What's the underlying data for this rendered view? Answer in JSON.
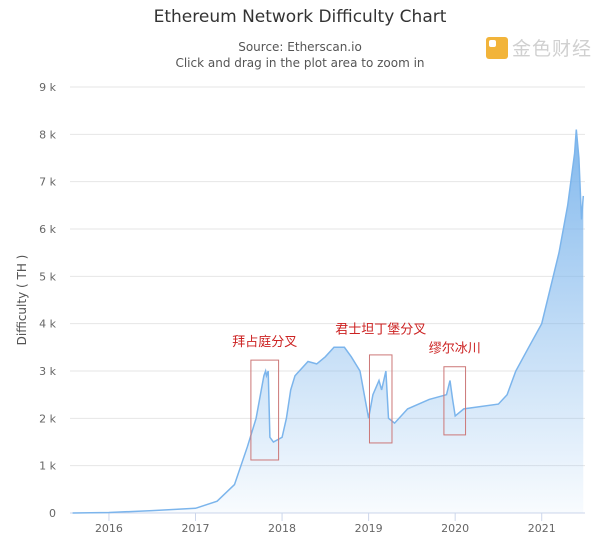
{
  "chart_data": {
    "type": "area",
    "title": "Ethereum Network Difficulty Chart",
    "subtitle": "Source: Etherscan.io",
    "subtitle2": "Click and drag in the plot area to zoom in",
    "xlabel": "",
    "ylabel": "Difficulty ( TH )",
    "xlim": [
      2015.55,
      2021.5
    ],
    "ylim": [
      0,
      9000
    ],
    "y_ticks": [
      "0",
      "1 k",
      "2 k",
      "3 k",
      "4 k",
      "5 k",
      "6 k",
      "7 k",
      "8 k",
      "9 k"
    ],
    "x_ticks": [
      "2016",
      "2017",
      "2018",
      "2019",
      "2020",
      "2021"
    ],
    "grid": "horizontal",
    "series_color": "#7cb5ec",
    "x": [
      2015.58,
      2016.0,
      2016.5,
      2017.0,
      2017.25,
      2017.45,
      2017.6,
      2017.7,
      2017.75,
      2017.79,
      2017.81,
      2017.82,
      2017.84,
      2017.86,
      2017.9,
      2018.0,
      2018.05,
      2018.1,
      2018.15,
      2018.3,
      2018.4,
      2018.5,
      2018.6,
      2018.72,
      2018.8,
      2018.9,
      2018.95,
      2019.0,
      2019.05,
      2019.12,
      2019.15,
      2019.2,
      2019.23,
      2019.3,
      2019.45,
      2019.7,
      2019.9,
      2019.94,
      2019.97,
      2020.0,
      2020.1,
      2020.5,
      2020.6,
      2020.7,
      2020.85,
      2021.0,
      2021.2,
      2021.3,
      2021.38,
      2021.4,
      2021.43,
      2021.46,
      2021.48
    ],
    "values": [
      0,
      10,
      50,
      100,
      250,
      600,
      1400,
      2000,
      2500,
      2900,
      3000,
      2900,
      3000,
      1600,
      1500,
      1600,
      2000,
      2600,
      2900,
      3200,
      3150,
      3300,
      3500,
      3500,
      3300,
      3000,
      2500,
      2000,
      2500,
      2800,
      2600,
      3000,
      2000,
      1900,
      2200,
      2400,
      2500,
      2800,
      2400,
      2050,
      2200,
      2300,
      2500,
      3000,
      3500,
      4000,
      5500,
      6500,
      7600,
      8100,
      7500,
      6200,
      6700
    ],
    "annotations": [
      {
        "label": "拜占庭分叉",
        "x": [
          2017.64,
          2017.96
        ],
        "y": [
          1120,
          3230
        ]
      },
      {
        "label": "君士坦丁堡分叉",
        "x": [
          2019.01,
          2019.27
        ],
        "y": [
          1480,
          3340
        ]
      },
      {
        "label": "缪尔冰川",
        "x": [
          2019.87,
          2020.12
        ],
        "y": [
          1650,
          3090
        ]
      }
    ],
    "annotation_color": "#cc2222"
  },
  "watermark": "金色财经"
}
